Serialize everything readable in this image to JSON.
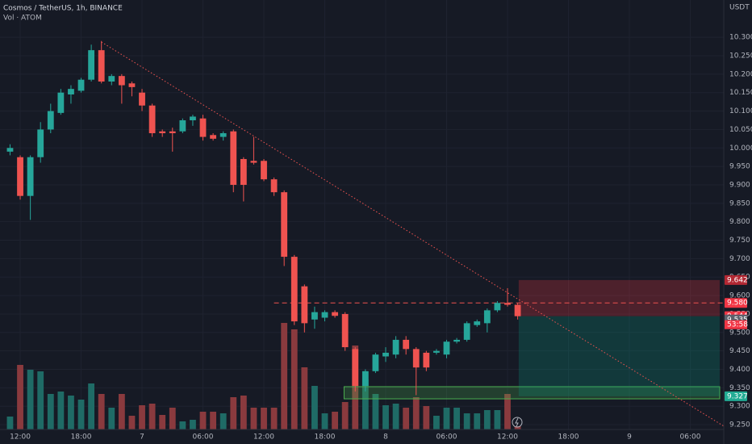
{
  "chart_data": {
    "type": "candlestick",
    "title": "Cosmos / TetherUS, 1h, BINANCE",
    "volume_label": "Vol · ATOM",
    "y_axis_label": "USDT",
    "x": [
      -1,
      0,
      1,
      2,
      3,
      4,
      5,
      6,
      7,
      8,
      9,
      10,
      11,
      12,
      13,
      14,
      15,
      16,
      17,
      18,
      19,
      20,
      21,
      22,
      23,
      24,
      25,
      26,
      27,
      28,
      29,
      30,
      31,
      32,
      33,
      34,
      35,
      36,
      37,
      38,
      39,
      40,
      41,
      42,
      43,
      44,
      45,
      46,
      47,
      48,
      49
    ],
    "open": [
      9.99,
      9.975,
      9.87,
      9.975,
      10.05,
      10.095,
      10.145,
      10.155,
      10.185,
      10.265,
      10.18,
      10.195,
      10.175,
      10.15,
      10.115,
      10.045,
      10.045,
      10.045,
      10.075,
      10.08,
      10.035,
      10.03,
      10.045,
      9.97,
      9.965,
      9.965,
      9.915,
      9.88,
      9.705,
      9.625,
      9.535,
      9.54,
      9.555,
      9.55,
      9.455,
      9.355,
      9.395,
      9.435,
      9.44,
      9.48,
      9.455,
      9.445,
      9.445,
      9.44,
      9.475,
      9.48,
      9.52,
      9.525,
      9.56,
      9.58,
      9.575
    ],
    "high": [
      10.01,
      9.98,
      9.98,
      10.07,
      10.12,
      10.16,
      10.17,
      10.19,
      10.28,
      10.29,
      10.2,
      10.2,
      10.18,
      10.16,
      10.12,
      10.05,
      10.055,
      10.08,
      10.09,
      10.09,
      10.04,
      10.045,
      10.05,
      9.975,
      10.03,
      9.97,
      9.92,
      9.885,
      9.71,
      9.63,
      9.57,
      9.56,
      9.56,
      9.555,
      9.46,
      9.4,
      9.445,
      9.46,
      9.49,
      9.49,
      9.46,
      9.45,
      9.455,
      9.48,
      9.485,
      9.53,
      9.535,
      9.565,
      9.585,
      9.62,
      9.58
    ],
    "low": [
      9.98,
      9.86,
      9.805,
      9.96,
      10.04,
      10.09,
      10.12,
      10.15,
      10.18,
      10.175,
      10.17,
      10.12,
      10.14,
      10.1,
      10.03,
      10.03,
      9.99,
      10.04,
      10.06,
      10.02,
      10.02,
      10.02,
      9.88,
      9.855,
      9.955,
      9.91,
      9.87,
      9.68,
      9.52,
      9.5,
      9.51,
      9.53,
      9.54,
      9.45,
      9.34,
      9.34,
      9.39,
      9.42,
      9.43,
      9.44,
      9.33,
      9.395,
      9.44,
      9.43,
      9.47,
      9.475,
      9.515,
      9.5,
      9.555,
      9.57,
      9.535
    ],
    "close": [
      10.0,
      9.87,
      9.975,
      10.05,
      10.1,
      10.15,
      10.16,
      10.185,
      10.265,
      10.18,
      10.195,
      10.17,
      10.165,
      10.115,
      10.04,
      10.04,
      10.04,
      10.075,
      10.085,
      10.03,
      10.025,
      10.04,
      9.9,
      9.9,
      9.96,
      9.915,
      9.88,
      9.705,
      9.53,
      9.525,
      9.555,
      9.555,
      9.545,
      9.46,
      9.355,
      9.395,
      9.44,
      9.445,
      9.48,
      9.455,
      9.405,
      9.405,
      9.45,
      9.475,
      9.48,
      9.525,
      9.53,
      9.56,
      9.58,
      9.575,
      9.544
    ],
    "volume": [
      16,
      80,
      74,
      72,
      44,
      47,
      42,
      37,
      57,
      44,
      27,
      44,
      17,
      30,
      32,
      18,
      27,
      10,
      12,
      22,
      22,
      20,
      40,
      42,
      27,
      27,
      27,
      132,
      124,
      77,
      54,
      20,
      22,
      34,
      104,
      62,
      44,
      30,
      32,
      27,
      40,
      29,
      17,
      27,
      27,
      20,
      20,
      24,
      24,
      44,
      4
    ],
    "up_color": "#26a69a",
    "down_color": "#ef5350",
    "volume_up_color": "#1f6b66",
    "volume_down_color": "#8a3a3e",
    "xlim": [
      -1.99,
      69.3
    ],
    "ylim": [
      9.237,
      10.401
    ],
    "xticks": [
      {
        "value": 0,
        "label": "12:00"
      },
      {
        "value": 6,
        "label": "18:00"
      },
      {
        "value": 12,
        "label": "7"
      },
      {
        "value": 18,
        "label": "06:00"
      },
      {
        "value": 24,
        "label": "12:00"
      },
      {
        "value": 30,
        "label": "18:00"
      },
      {
        "value": 36,
        "label": "8"
      },
      {
        "value": 42,
        "label": "06:00"
      },
      {
        "value": 48,
        "label": "12:00"
      },
      {
        "value": 54,
        "label": "18:00"
      },
      {
        "value": 60,
        "label": "9"
      },
      {
        "value": 66,
        "label": "06:00"
      }
    ],
    "yticks": [
      {
        "value": 10.3,
        "label": "10.300"
      },
      {
        "value": 10.25,
        "label": "10.250"
      },
      {
        "value": 10.2,
        "label": "10.200"
      },
      {
        "value": 10.15,
        "label": "10.150"
      },
      {
        "value": 10.1,
        "label": "10.100"
      },
      {
        "value": 10.05,
        "label": "10.050"
      },
      {
        "value": 10.0,
        "label": "10.000"
      },
      {
        "value": 9.95,
        "label": "9.950"
      },
      {
        "value": 9.9,
        "label": "9.900"
      },
      {
        "value": 9.85,
        "label": "9.850"
      },
      {
        "value": 9.8,
        "label": "9.800"
      },
      {
        "value": 9.75,
        "label": "9.750"
      },
      {
        "value": 9.7,
        "label": "9.700"
      },
      {
        "value": 9.65,
        "label": "9.650"
      },
      {
        "value": 9.6,
        "label": "9.600"
      },
      {
        "value": 9.55,
        "label": "9.550"
      },
      {
        "value": 9.5,
        "label": "9.500"
      },
      {
        "value": 9.45,
        "label": "9.450"
      },
      {
        "value": 9.4,
        "label": "9.400"
      },
      {
        "value": 9.35,
        "label": "9.350"
      },
      {
        "value": 9.3,
        "label": "9.300"
      },
      {
        "value": 9.25,
        "label": "9.250"
      }
    ],
    "grid": true,
    "trendline": {
      "x": [
        8,
        69.3
      ],
      "y": [
        10.287,
        9.246
      ],
      "color": "#ef5350"
    },
    "level": {
      "x": [
        25,
        69.3
      ],
      "y": 9.58,
      "color": "#ef5350"
    },
    "position": {
      "x": [
        49.1,
        68.9
      ],
      "entry": 9.544,
      "stop": 9.642,
      "target": 9.327
    },
    "zone": {
      "x": [
        31.9,
        68.9
      ],
      "y": [
        9.32,
        9.353
      ]
    },
    "price_labels": [
      {
        "value": 9.642,
        "label": "9.642",
        "color": "#b22833"
      },
      {
        "value": 9.58,
        "label": "9.580",
        "color": "#f23645"
      },
      {
        "value": 9.544,
        "label": "9.544",
        "color": "#f23645"
      },
      {
        "value": 9.535,
        "label": "9.535",
        "color": "#5d606b"
      },
      {
        "value": 9.327,
        "label": "9.327",
        "color": "#22ab94"
      }
    ],
    "countdown": "53:58"
  }
}
